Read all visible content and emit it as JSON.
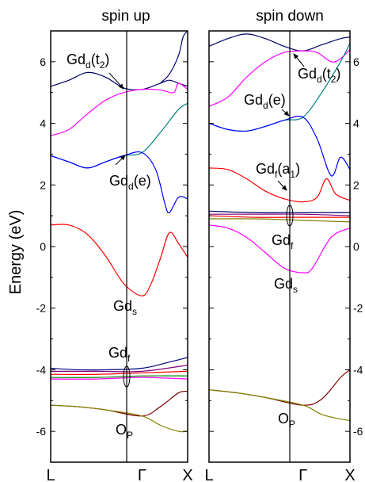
{
  "chart_data": {
    "type": "line",
    "ylabel": "Energy (eV)",
    "ylim": [
      -7,
      7
    ],
    "y_ticks": [
      "-6",
      "-4",
      "-2",
      "0",
      "2",
      "4",
      "6"
    ],
    "k_ticks": [
      "L",
      "Γ",
      "X"
    ],
    "k_range": [
      0,
      1.5
    ],
    "panels": [
      {
        "title": "spin up",
        "annotations": [
          {
            "main": "Gd",
            "sub": "d",
            "rest": "(t",
            "sub2": "2",
            "end": ")"
          },
          {
            "main": "Gd",
            "sub": "d",
            "rest": "(e)",
            "sub2": "",
            "end": ""
          },
          {
            "main": "Gd",
            "sub": "s",
            "rest": "",
            "sub2": "",
            "end": ""
          },
          {
            "main": "Gd",
            "sub": "f",
            "rest": "",
            "sub2": "",
            "end": ""
          },
          {
            "main": "O",
            "sub": "P",
            "rest": "",
            "sub2": "",
            "end": ""
          }
        ],
        "series": [
          {
            "color": "#000066",
            "x": [
              0,
              0.2,
              0.4,
              0.6,
              0.8,
              1.0,
              1.2,
              1.3,
              1.4,
              1.5
            ],
            "y": [
              5.2,
              5.4,
              5.65,
              5.5,
              5.15,
              5.1,
              5.3,
              5.4,
              5.3,
              5.2
            ]
          },
          {
            "color": "#ff00ff",
            "x": [
              0,
              0.2,
              0.4,
              0.6,
              0.8,
              1.0,
              1.15,
              1.25,
              1.35,
              1.4,
              1.5
            ],
            "y": [
              3.6,
              3.8,
              4.3,
              4.75,
              5.0,
              5.1,
              5.1,
              5.05,
              5.0,
              5.3,
              5.1
            ]
          },
          {
            "color": "#008080",
            "x": [
              0,
              0.2,
              0.4,
              0.6,
              0.8,
              1.0,
              1.2,
              1.4,
              1.5
            ],
            "y": [
              2.95,
              2.75,
              2.55,
              2.75,
              2.95,
              3.05,
              3.7,
              4.45,
              4.65
            ]
          },
          {
            "color": "#0000ff",
            "x": [
              0,
              0.2,
              0.4,
              0.6,
              0.8,
              1.0,
              1.15,
              1.25,
              1.3,
              1.4,
              1.5
            ],
            "y": [
              2.95,
              2.75,
              2.55,
              2.75,
              2.95,
              3.05,
              2.5,
              1.4,
              1.1,
              1.6,
              1.55
            ]
          },
          {
            "color": "#000080",
            "x": [
              1.2,
              1.3,
              1.4,
              1.45,
              1.5
            ],
            "y": [
              5.3,
              5.6,
              6.2,
              6.8,
              7.0
            ]
          },
          {
            "color": "#ff0000",
            "x": [
              0,
              0.2,
              0.4,
              0.6,
              0.8,
              1.0,
              1.1,
              1.2,
              1.3,
              1.4,
              1.5
            ],
            "y": [
              0.7,
              0.7,
              0.4,
              -0.3,
              -1.2,
              -1.6,
              -1.2,
              -0.4,
              0.45,
              0.1,
              -0.35
            ]
          },
          {
            "color": "#000080",
            "x": [
              0,
              0.3,
              0.6,
              1.0,
              1.3,
              1.5
            ],
            "y": [
              -3.95,
              -4.0,
              -4.0,
              -3.95,
              -3.75,
              -3.6
            ]
          },
          {
            "color": "#800080",
            "x": [
              0,
              0.5,
              1.0,
              1.5
            ],
            "y": [
              -4.05,
              -4.05,
              -4.05,
              -3.85
            ]
          },
          {
            "color": "#ff0000",
            "x": [
              0,
              0.5,
              1.0,
              1.5
            ],
            "y": [
              -4.15,
              -4.15,
              -4.1,
              -4.05
            ]
          },
          {
            "color": "#008000",
            "x": [
              0,
              0.5,
              1.0,
              1.5
            ],
            "y": [
              -4.25,
              -4.25,
              -4.2,
              -4.2
            ]
          },
          {
            "color": "#ff00ff",
            "x": [
              0,
              0.5,
              1.0,
              1.5
            ],
            "y": [
              -4.3,
              -4.3,
              -4.25,
              -4.3
            ]
          },
          {
            "color": "#800000",
            "x": [
              0,
              0.3,
              0.6,
              1.0,
              1.2,
              1.4,
              1.5
            ],
            "y": [
              -5.15,
              -5.2,
              -5.3,
              -5.5,
              -5.2,
              -4.75,
              -4.7
            ]
          },
          {
            "color": "#808000",
            "x": [
              0,
              0.3,
              0.6,
              1.0,
              1.2,
              1.4,
              1.5
            ],
            "y": [
              -5.15,
              -5.2,
              -5.3,
              -5.5,
              -5.8,
              -6.0,
              -6.0
            ]
          }
        ]
      },
      {
        "title": "spin down",
        "annotations": [
          {
            "main": "Gd",
            "sub": "d",
            "rest": "(t",
            "sub2": "2",
            "end": ")"
          },
          {
            "main": "Gd",
            "sub": "d",
            "rest": "(e)",
            "sub2": "",
            "end": ""
          },
          {
            "main": "Gd",
            "sub": "f",
            "rest": "(a",
            "sub2": "1",
            "end": ")"
          },
          {
            "main": "Gd",
            "sub": "f",
            "rest": "",
            "sub2": "",
            "end": ""
          },
          {
            "main": "Gd",
            "sub": "s",
            "rest": "",
            "sub2": "",
            "end": ""
          },
          {
            "main": "O",
            "sub": "P",
            "rest": "",
            "sub2": "",
            "end": ""
          }
        ],
        "series": [
          {
            "color": "#000066",
            "x": [
              0,
              0.2,
              0.4,
              0.6,
              0.8,
              1.0,
              1.2,
              1.4,
              1.5
            ],
            "y": [
              6.5,
              6.75,
              6.9,
              6.75,
              6.5,
              6.35,
              6.55,
              6.75,
              6.8
            ]
          },
          {
            "color": "#ff00ff",
            "x": [
              0,
              0.2,
              0.4,
              0.6,
              0.8,
              1.0,
              1.15,
              1.3,
              1.4,
              1.5
            ],
            "y": [
              4.55,
              4.85,
              5.5,
              6.0,
              6.3,
              6.35,
              6.3,
              6.0,
              6.1,
              6.4
            ]
          },
          {
            "color": "#008080",
            "x": [
              0,
              0.2,
              0.4,
              0.6,
              0.8,
              1.0,
              1.2,
              1.4,
              1.5
            ],
            "y": [
              4.0,
              3.8,
              3.75,
              3.9,
              4.1,
              4.2,
              5.0,
              6.0,
              6.6
            ]
          },
          {
            "color": "#0000ff",
            "x": [
              0,
              0.2,
              0.4,
              0.6,
              0.8,
              1.0,
              1.15,
              1.3,
              1.4,
              1.5
            ],
            "y": [
              4.0,
              3.8,
              3.75,
              3.9,
              4.1,
              4.2,
              3.5,
              2.3,
              2.9,
              2.5
            ]
          },
          {
            "color": "#ff0000",
            "x": [
              0,
              0.2,
              0.4,
              0.6,
              0.8,
              1.0,
              1.15,
              1.25,
              1.35,
              1.5
            ],
            "y": [
              2.55,
              2.5,
              2.2,
              1.8,
              1.55,
              1.45,
              1.6,
              2.2,
              1.7,
              1.5
            ]
          },
          {
            "color": "#000066",
            "x": [
              0,
              0.5,
              1.0,
              1.5
            ],
            "y": [
              1.15,
              1.1,
              1.1,
              1.1
            ]
          },
          {
            "color": "#800080",
            "x": [
              0,
              0.5,
              1.0,
              1.5
            ],
            "y": [
              1.05,
              1.05,
              1.05,
              1.0
            ]
          },
          {
            "color": "#ff0000",
            "x": [
              0,
              0.5,
              1.0,
              1.5
            ],
            "y": [
              1.0,
              0.95,
              0.95,
              0.95
            ]
          },
          {
            "color": "#808000",
            "x": [
              0,
              0.5,
              1.0,
              1.5
            ],
            "y": [
              0.9,
              0.9,
              0.85,
              0.8
            ]
          },
          {
            "color": "#ff00ff",
            "x": [
              0,
              0.2,
              0.4,
              0.6,
              0.8,
              1.0,
              1.1,
              1.3,
              1.5
            ],
            "y": [
              0.7,
              0.6,
              0.3,
              -0.2,
              -0.7,
              -0.85,
              -0.7,
              0.3,
              0.6
            ]
          },
          {
            "color": "#800000",
            "x": [
              0,
              0.3,
              0.6,
              1.0,
              1.2,
              1.4,
              1.5
            ],
            "y": [
              -4.65,
              -4.75,
              -4.9,
              -5.15,
              -4.95,
              -4.25,
              -4.0
            ]
          },
          {
            "color": "#808000",
            "x": [
              0,
              0.3,
              0.6,
              1.0,
              1.2,
              1.4,
              1.5
            ],
            "y": [
              -4.65,
              -4.75,
              -4.9,
              -5.15,
              -5.45,
              -5.6,
              -5.65
            ]
          }
        ]
      }
    ]
  }
}
